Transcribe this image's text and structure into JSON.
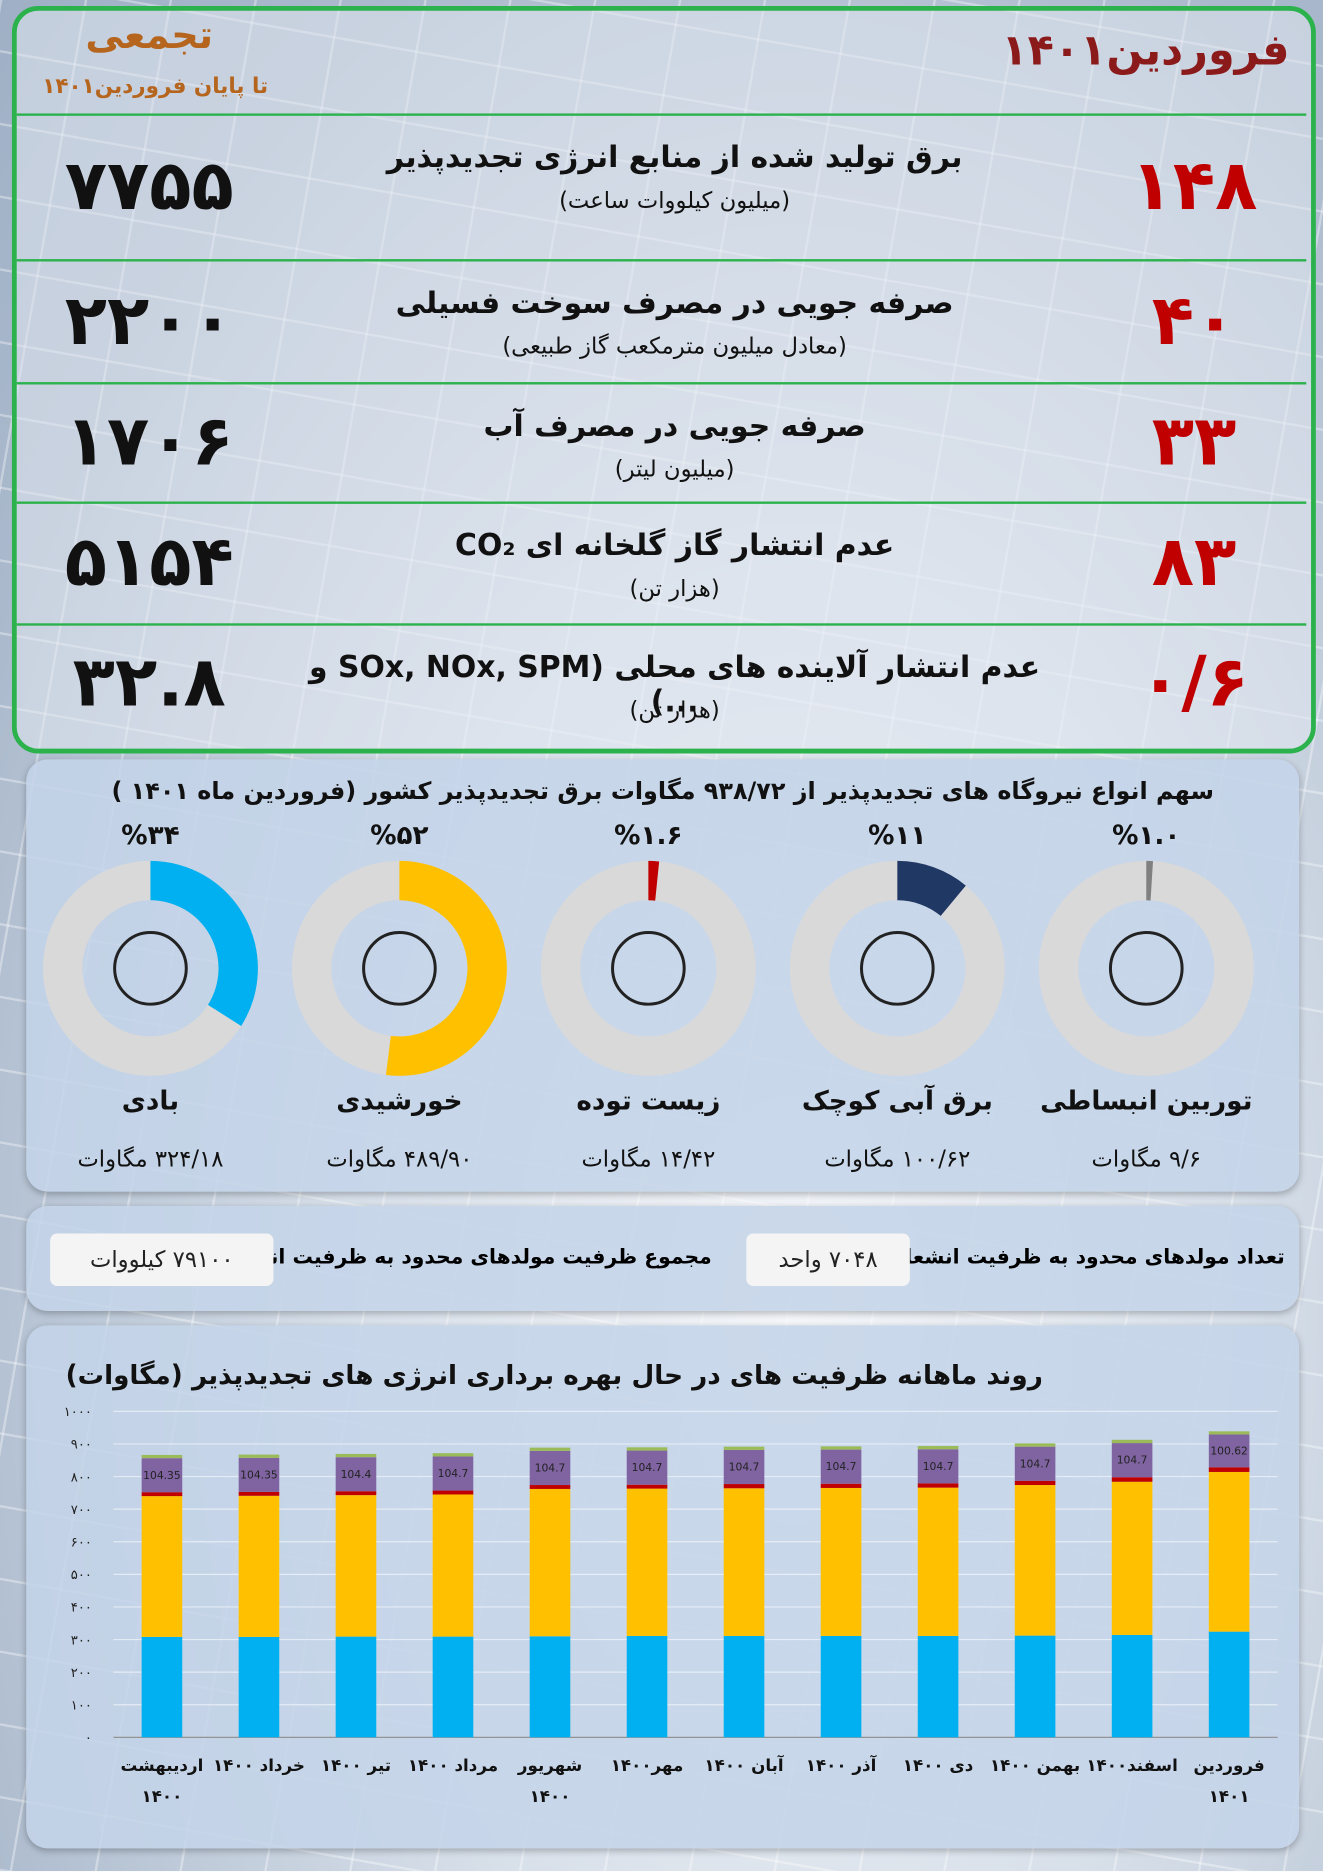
{
  "header": {
    "month_title": "فروردین۱۴۰۱",
    "cumulative_title": "تجمعی",
    "cumulative_subtitle": "تا پایان فروردین۱۴۰۱"
  },
  "rows": [
    {
      "month_value": "۱۴۸",
      "title": "برق تولید شده از منابع انرژی تجدیدپذیر",
      "unit": "(میلیون کیلووات ساعت)",
      "cumulative_value": "۷۷۵۵"
    },
    {
      "month_value": "۴۰",
      "title": "صرفه جویی در مصرف سوخت فسیلی",
      "unit": "(معادل میلیون مترمکعب گاز طبیعی)",
      "cumulative_value": "۲۲۰۰"
    },
    {
      "month_value": "۳۳",
      "title": "صرفه جویی در مصرف آب",
      "unit": "(میلیون لیتر)",
      "cumulative_value": "۱۷۰۶"
    },
    {
      "month_value": "۸۳",
      "title": "عدم انتشار گاز گلخانه ای CO₂",
      "unit": "(هزار تن)",
      "cumulative_value": "۵۱۵۴"
    },
    {
      "month_value": "۰/۶",
      "title": "عدم انتشار آلاینده های محلی (SOx, NOx, SPM و ...)",
      "unit": "(هزار تن)",
      "cumulative_value": "۳۲.۸"
    }
  ],
  "summary": {
    "units_label": "تعداد مولدهای محدود به ظرفیت انشعاب",
    "units_value": "۷۰۴۸ واحد",
    "capacity_label": "مجموع ظرفیت مولدهای محدود به ظرفیت انشعاب",
    "capacity_value": "۷۹۱۰۰ کیلووات"
  },
  "chart_data": [
    {
      "type": "donut",
      "title": "سهم انواع نیروگاه های تجدیدپذیر از ۹۳۸/۷۲ مگاوات برق تجدیدپذیر کشور (فروردین ماه ۱۴۰۱ )",
      "categories": [
        "توربین انبساطی",
        "برق آبی کوچک",
        "زیست توده",
        "خورشیدی",
        "بادی"
      ],
      "values": [
        1,
        11,
        1.6,
        52,
        34
      ],
      "value_labels": [
        "%۱.۰",
        "%۱۱",
        "%۱.۶",
        "%۵۲",
        "%۳۴"
      ],
      "capacities": [
        "۹/۶ مگاوات",
        "۱۰۰/۶۲ مگاوات",
        "۱۴/۴۲ مگاوات",
        "۴۸۹/۹۰ مگاوات",
        "۳۲۴/۱۸ مگاوات"
      ],
      "colors": [
        "#808080",
        "#1f3864",
        "#c00000",
        "#ffc000",
        "#00b0f0"
      ],
      "track_color": "#d9d9d9"
    },
    {
      "type": "stacked_bar",
      "title": "روند ماهانه ظرفیت های در حال بهره برداری انرژی های تجدیدپذیر (مگاوات)",
      "categories": [
        "اردیبهشت ۱۴۰۰",
        "خرداد ۱۴۰۰",
        "تیر ۱۴۰۰",
        "مرداد ۱۴۰۰",
        "شهریور ۱۴۰۰",
        "مهر۱۴۰۰",
        "آبان ۱۴۰۰",
        "آذر ۱۴۰۰",
        "دی ۱۴۰۰",
        "بهمن ۱۴۰۰",
        "اسفند۱۴۰۰",
        "فروردین ۱۴۰۱"
      ],
      "series": [
        {
          "color": "#00b0f0",
          "values": [
            308,
            308,
            309,
            309,
            310,
            311,
            311,
            311,
            311,
            312,
            314,
            324.18
          ]
        },
        {
          "color": "#ffc000",
          "values": [
            432,
            433,
            434,
            436,
            452,
            452,
            453,
            454,
            455,
            462,
            470,
            489.9
          ]
        },
        {
          "color": "#c00000",
          "values": [
            12,
            12,
            12,
            12,
            12,
            12,
            13,
            13,
            13,
            13,
            14,
            14.42
          ]
        },
        {
          "color": "#8064a2",
          "values": [
            104.35,
            104.35,
            104.4,
            104.7,
            104.7,
            104.7,
            104.7,
            104.7,
            104.7,
            104.7,
            104.7,
            100.62
          ],
          "data_labels": true
        },
        {
          "color": "#9bbb59",
          "values": [
            10,
            10,
            10,
            10,
            10,
            10,
            10,
            10,
            10,
            10,
            10,
            9.6
          ]
        }
      ],
      "ylim": [
        0,
        1000
      ],
      "yticks": [
        {
          "value": 0,
          "label": "۰"
        },
        {
          "value": 100,
          "label": "۱۰۰"
        },
        {
          "value": 200,
          "label": "۲۰۰"
        },
        {
          "value": 300,
          "label": "۳۰۰"
        },
        {
          "value": 400,
          "label": "۴۰۰"
        },
        {
          "value": 500,
          "label": "۵۰۰"
        },
        {
          "value": 600,
          "label": "۶۰۰"
        },
        {
          "value": 700,
          "label": "۷۰۰"
        },
        {
          "value": 800,
          "label": "۸۰۰"
        },
        {
          "value": 900,
          "label": "۹۰۰"
        },
        {
          "value": 1000,
          "label": "۱۰۰۰"
        }
      ],
      "grid": true
    }
  ]
}
